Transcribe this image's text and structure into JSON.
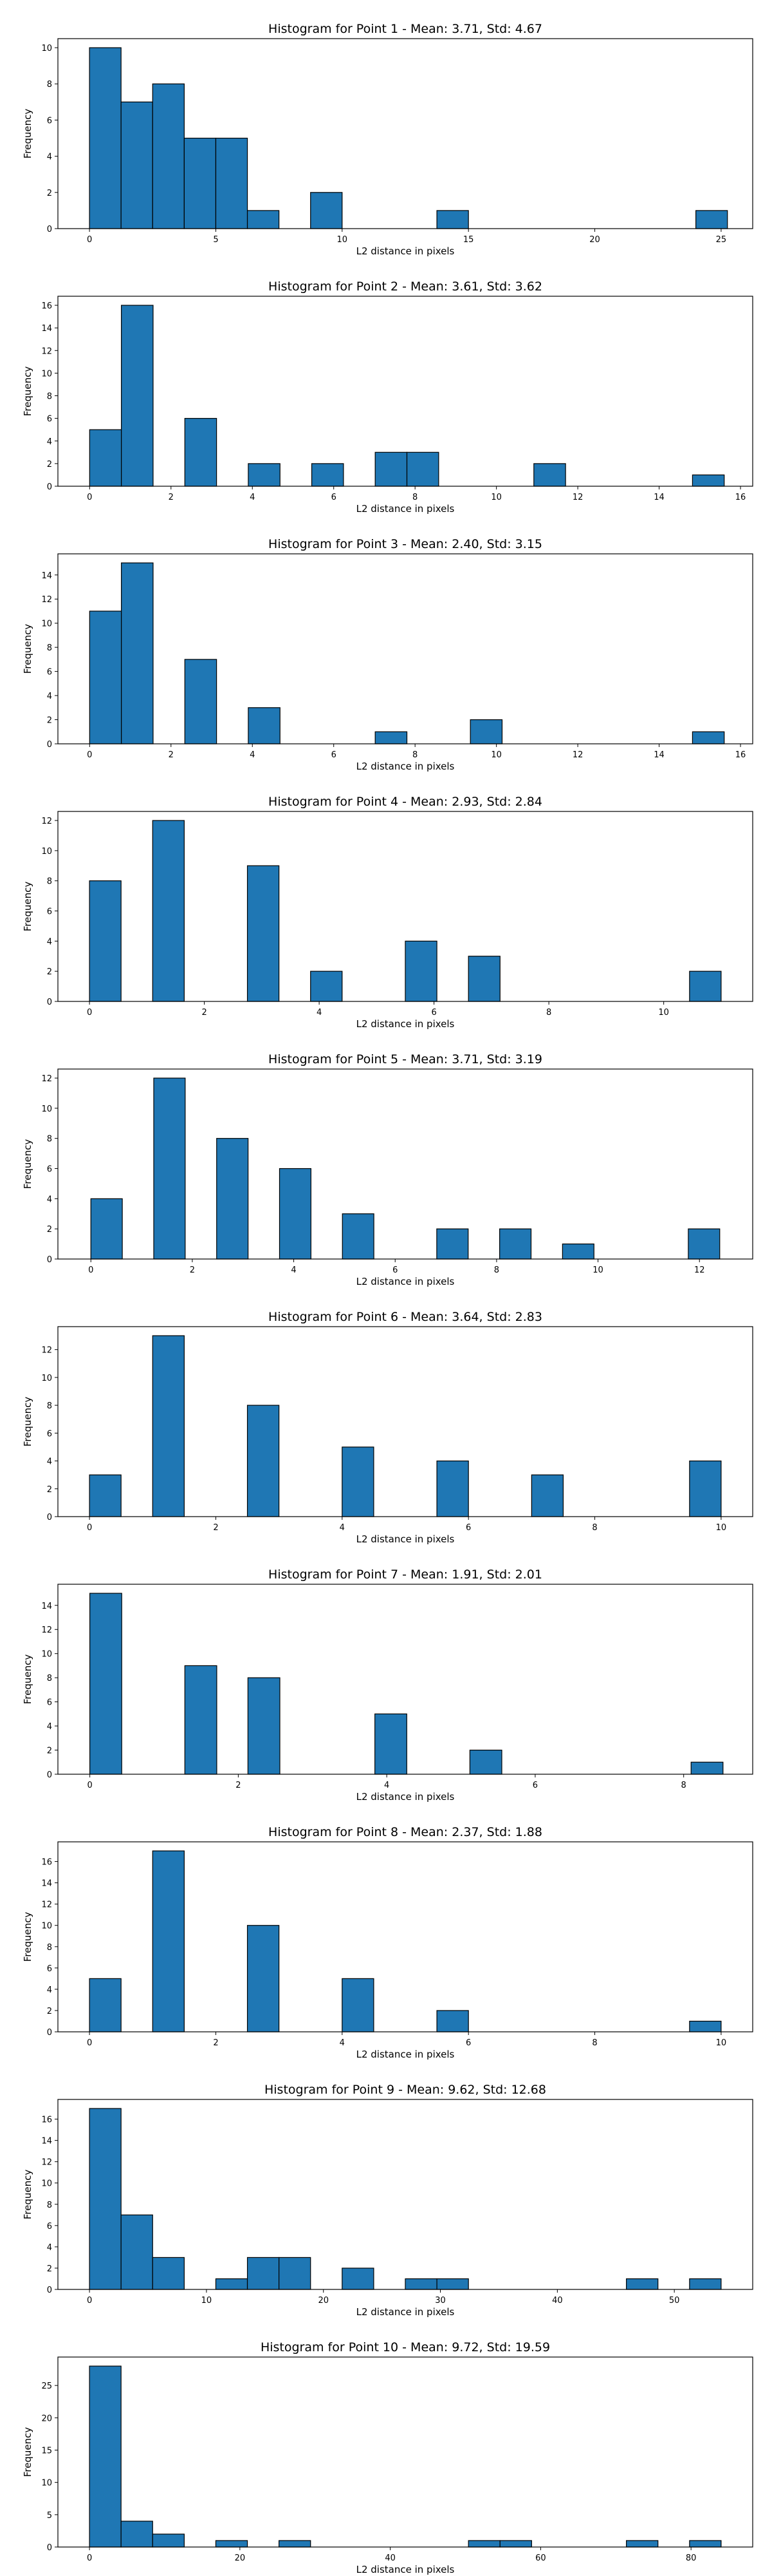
{
  "colors": {
    "bar": "#1f77b4",
    "edge": "#000000"
  },
  "chart_data": [
    {
      "type": "bar",
      "title": "Histogram for Point 1 - Mean: 3.71, Std: 4.67",
      "xlabel": "L2 distance in pixels",
      "ylabel": "Frequency",
      "xlim": [
        -1.25,
        26.25
      ],
      "ylim": [
        0,
        10.5
      ],
      "xticks": [
        0,
        5,
        10,
        15,
        20,
        25
      ],
      "yticks": [
        0,
        2,
        4,
        6,
        8,
        10
      ],
      "bins": [
        [
          0,
          1.25,
          10
        ],
        [
          1.25,
          2.5,
          7
        ],
        [
          2.5,
          3.75,
          8
        ],
        [
          3.75,
          5,
          5
        ],
        [
          5,
          6.25,
          5
        ],
        [
          6.25,
          7.5,
          1
        ],
        [
          8.75,
          10,
          2
        ],
        [
          13.75,
          15,
          1
        ],
        [
          24.0,
          25.25,
          1
        ]
      ]
    },
    {
      "type": "bar",
      "title": "Histogram for Point 2 - Mean: 3.61, Std: 3.62",
      "xlabel": "L2 distance in pixels",
      "ylabel": "Frequency",
      "xlim": [
        -0.78,
        16.3
      ],
      "ylim": [
        0,
        16.8
      ],
      "xticks": [
        0,
        2,
        4,
        6,
        8,
        10,
        12,
        14,
        16
      ],
      "yticks": [
        0,
        2,
        4,
        6,
        8,
        10,
        12,
        14,
        16
      ],
      "bins": [
        [
          0,
          0.78,
          5
        ],
        [
          0.78,
          1.56,
          16
        ],
        [
          2.34,
          3.12,
          6
        ],
        [
          3.9,
          4.68,
          2
        ],
        [
          5.46,
          6.24,
          2
        ],
        [
          7.02,
          7.8,
          3
        ],
        [
          7.8,
          8.58,
          3
        ],
        [
          10.92,
          11.7,
          2
        ],
        [
          14.82,
          15.6,
          1
        ]
      ]
    },
    {
      "type": "bar",
      "title": "Histogram for Point 3 - Mean: 2.40, Std: 3.15",
      "xlabel": "L2 distance in pixels",
      "ylabel": "Frequency",
      "xlim": [
        -0.78,
        16.3
      ],
      "ylim": [
        0,
        15.75
      ],
      "xticks": [
        0,
        2,
        4,
        6,
        8,
        10,
        12,
        14,
        16
      ],
      "yticks": [
        0,
        2,
        4,
        6,
        8,
        10,
        12,
        14
      ],
      "bins": [
        [
          0,
          0.78,
          11
        ],
        [
          0.78,
          1.56,
          15
        ],
        [
          2.34,
          3.12,
          7
        ],
        [
          3.9,
          4.68,
          3
        ],
        [
          7.02,
          7.8,
          1
        ],
        [
          9.36,
          10.14,
          2
        ],
        [
          14.82,
          15.6,
          1
        ]
      ]
    },
    {
      "type": "bar",
      "title": "Histogram for Point 4 - Mean: 2.93, Std: 2.84",
      "xlabel": "L2 distance in pixels",
      "ylabel": "Frequency",
      "xlim": [
        -0.55,
        11.55
      ],
      "ylim": [
        0,
        12.6
      ],
      "xticks": [
        0,
        2,
        4,
        6,
        8,
        10
      ],
      "yticks": [
        0,
        2,
        4,
        6,
        8,
        10,
        12
      ],
      "bins": [
        [
          0,
          0.55,
          8
        ],
        [
          1.1,
          1.65,
          12
        ],
        [
          2.75,
          3.3,
          9
        ],
        [
          3.85,
          4.4,
          2
        ],
        [
          5.5,
          6.05,
          4
        ],
        [
          6.6,
          7.15,
          3
        ],
        [
          10.45,
          11.0,
          2
        ]
      ]
    },
    {
      "type": "bar",
      "title": "Histogram for Point 5 - Mean: 3.71, Std: 3.19",
      "xlabel": "L2 distance in pixels",
      "ylabel": "Frequency",
      "xlim": [
        -0.65,
        13.05
      ],
      "ylim": [
        0,
        12.6
      ],
      "xticks": [
        0,
        2,
        4,
        6,
        8,
        10,
        12
      ],
      "yticks": [
        0,
        2,
        4,
        6,
        8,
        10,
        12
      ],
      "bins": [
        [
          0,
          0.62,
          4
        ],
        [
          1.24,
          1.86,
          12
        ],
        [
          2.48,
          3.1,
          8
        ],
        [
          3.72,
          4.34,
          6
        ],
        [
          4.96,
          5.58,
          3
        ],
        [
          6.82,
          7.44,
          2
        ],
        [
          8.06,
          8.68,
          2
        ],
        [
          9.3,
          9.92,
          1
        ],
        [
          11.78,
          12.4,
          2
        ]
      ]
    },
    {
      "type": "bar",
      "title": "Histogram for Point 6 - Mean: 3.64, Std: 2.83",
      "xlabel": "L2 distance in pixels",
      "ylabel": "Frequency",
      "xlim": [
        -0.5,
        10.5
      ],
      "ylim": [
        0,
        13.65
      ],
      "xticks": [
        0,
        2,
        4,
        6,
        8,
        10
      ],
      "yticks": [
        0,
        2,
        4,
        6,
        8,
        10,
        12
      ],
      "bins": [
        [
          0,
          0.5,
          3
        ],
        [
          1.0,
          1.5,
          13
        ],
        [
          2.5,
          3.0,
          8
        ],
        [
          4.0,
          4.5,
          5
        ],
        [
          5.5,
          6.0,
          4
        ],
        [
          7.0,
          7.5,
          3
        ],
        [
          9.5,
          10.0,
          4
        ]
      ]
    },
    {
      "type": "bar",
      "title": "Histogram for Point 7 - Mean: 1.91, Std: 2.01",
      "xlabel": "L2 distance in pixels",
      "ylabel": "Frequency",
      "xlim": [
        -0.43,
        8.93
      ],
      "ylim": [
        0,
        15.75
      ],
      "xticks": [
        0,
        2,
        4,
        6,
        8
      ],
      "yticks": [
        0,
        2,
        4,
        6,
        8,
        10,
        12,
        14
      ],
      "bins": [
        [
          0,
          0.43,
          15
        ],
        [
          1.28,
          1.71,
          9
        ],
        [
          2.13,
          2.56,
          8
        ],
        [
          3.84,
          4.27,
          5
        ],
        [
          5.12,
          5.55,
          2
        ],
        [
          8.1,
          8.53,
          1
        ]
      ]
    },
    {
      "type": "bar",
      "title": "Histogram for Point 8 - Mean: 2.37, Std: 1.88",
      "xlabel": "L2 distance in pixels",
      "ylabel": "Frequency",
      "xlim": [
        -0.5,
        10.5
      ],
      "ylim": [
        0,
        17.85
      ],
      "xticks": [
        0,
        2,
        4,
        6,
        8,
        10
      ],
      "yticks": [
        0,
        2,
        4,
        6,
        8,
        10,
        12,
        14,
        16
      ],
      "bins": [
        [
          0,
          0.5,
          5
        ],
        [
          1.0,
          1.5,
          17
        ],
        [
          2.5,
          3.0,
          10
        ],
        [
          4.0,
          4.5,
          5
        ],
        [
          5.5,
          6.0,
          2
        ],
        [
          9.5,
          10.0,
          1
        ]
      ]
    },
    {
      "type": "bar",
      "title": "Histogram for Point 9 - Mean: 9.62, Std: 12.68",
      "xlabel": "L2 distance in pixels",
      "ylabel": "Frequency",
      "xlim": [
        -2.7,
        56.7
      ],
      "ylim": [
        0,
        17.85
      ],
      "xticks": [
        0,
        10,
        20,
        30,
        40,
        50
      ],
      "yticks": [
        0,
        2,
        4,
        6,
        8,
        10,
        12,
        14,
        16
      ],
      "bins": [
        [
          0,
          2.7,
          17
        ],
        [
          2.7,
          5.4,
          7
        ],
        [
          5.4,
          8.1,
          3
        ],
        [
          10.8,
          13.5,
          1
        ],
        [
          13.5,
          16.2,
          3
        ],
        [
          16.2,
          18.9,
          3
        ],
        [
          21.6,
          24.3,
          2
        ],
        [
          27.0,
          29.7,
          1
        ],
        [
          29.7,
          32.4,
          1
        ],
        [
          45.9,
          48.6,
          1
        ],
        [
          51.3,
          54.0,
          1
        ]
      ]
    },
    {
      "type": "bar",
      "title": "Histogram for Point 10 - Mean: 9.72, Std: 19.59",
      "xlabel": "L2 distance in pixels",
      "ylabel": "Frequency",
      "xlim": [
        -4.2,
        88.2
      ],
      "ylim": [
        0,
        29.4
      ],
      "xticks": [
        0,
        20,
        40,
        60,
        80
      ],
      "yticks": [
        0,
        5,
        10,
        15,
        20,
        25
      ],
      "bins": [
        [
          0,
          4.2,
          28
        ],
        [
          4.2,
          8.4,
          4
        ],
        [
          8.4,
          12.6,
          2
        ],
        [
          16.8,
          21.0,
          1
        ],
        [
          25.2,
          29.4,
          1
        ],
        [
          50.4,
          54.6,
          1
        ],
        [
          54.6,
          58.8,
          1
        ],
        [
          71.4,
          75.6,
          1
        ],
        [
          79.8,
          84.0,
          1
        ]
      ]
    }
  ]
}
